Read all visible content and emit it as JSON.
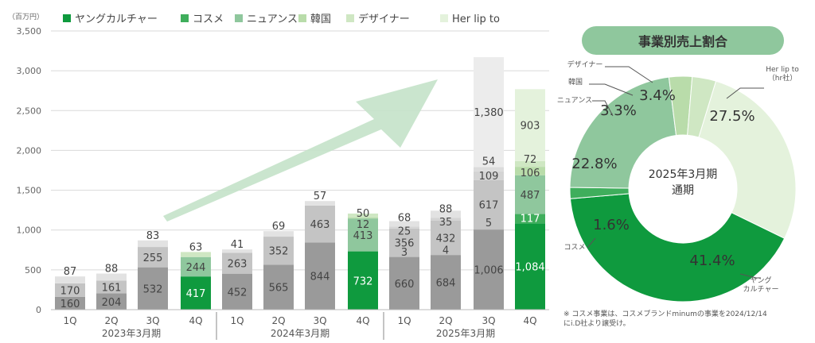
{
  "colors": {
    "young_culture": "#0f9a3e",
    "young_culture_shade": "#9a9a9a",
    "cosme": "#3fae5c",
    "nuance": "#8fc79d",
    "korea": "#b9dcaa",
    "designer": "#cfe7c3",
    "herlipto": "#e4f2dc",
    "grey_light": "#c4c4c4",
    "grey_faint": "#e2e2e2",
    "grid": "#d9d9d9",
    "arrow": "#c4e2c9",
    "pie_title_bg": "#8fc79d"
  },
  "chart_data": [
    {
      "type": "bar",
      "stacked": true,
      "ylabel": "（百万円）",
      "ylim": [
        0,
        3500
      ],
      "yticks": [
        0,
        500,
        1000,
        1500,
        2000,
        2500,
        3000,
        3500
      ],
      "ytick_labels": [
        "0",
        "500",
        "1,000",
        "1,500",
        "2,000",
        "2,500",
        "3,000",
        "3,500"
      ],
      "grid": true,
      "legend_position": "top",
      "legend": [
        {
          "label": "ヤングカルチャー",
          "color": "#0f9a3e"
        },
        {
          "label": "コスメ",
          "color": "#3fae5c"
        },
        {
          "label": "ニュアンス",
          "color": "#8fc79d"
        },
        {
          "label": "韓国",
          "color": "#b9dcaa"
        },
        {
          "label": "デザイナー",
          "color": "#cfe7c3"
        },
        {
          "label": "Her lip to",
          "color": "#e4f2dc"
        }
      ],
      "quarters": [
        "1Q",
        "2Q",
        "3Q",
        "4Q",
        "1Q",
        "2Q",
        "3Q",
        "4Q",
        "1Q",
        "2Q",
        "3Q",
        "4Q"
      ],
      "fiscal_years": [
        {
          "label": "2023年3月期",
          "start": 0,
          "end": 3
        },
        {
          "label": "2024年3月期",
          "start": 4,
          "end": 7
        },
        {
          "label": "2025年3月期",
          "start": 8,
          "end": 11
        }
      ],
      "bars": [
        {
          "segments": [
            {
              "value": 160,
              "label": "160",
              "color": "#9a9a9a"
            },
            {
              "value": 170,
              "label": "170",
              "color": "#c4c4c4"
            },
            {
              "value": 87,
              "label": "87",
              "color": "#e2e2e2"
            }
          ]
        },
        {
          "segments": [
            {
              "value": 204,
              "label": "204",
              "color": "#9a9a9a"
            },
            {
              "value": 161,
              "label": "161",
              "color": "#c4c4c4"
            },
            {
              "value": 88,
              "label": "88",
              "color": "#e2e2e2"
            }
          ]
        },
        {
          "segments": [
            {
              "value": 532,
              "label": "532",
              "color": "#9a9a9a"
            },
            {
              "value": 255,
              "label": "255",
              "color": "#c4c4c4"
            },
            {
              "value": 83,
              "label": "83",
              "color": "#e2e2e2"
            }
          ]
        },
        {
          "segments": [
            {
              "value": 417,
              "label": "417",
              "color": "#0f9a3e"
            },
            {
              "value": 244,
              "label": "244",
              "color": "#8fc79d"
            },
            {
              "value": 63,
              "label": "63",
              "color": "#cfe7c3"
            }
          ]
        },
        {
          "segments": [
            {
              "value": 452,
              "label": "452",
              "color": "#9a9a9a"
            },
            {
              "value": 263,
              "label": "263",
              "color": "#c4c4c4"
            },
            {
              "value": 41,
              "label": "41",
              "color": "#e2e2e2"
            }
          ]
        },
        {
          "segments": [
            {
              "value": 565,
              "label": "565",
              "color": "#9a9a9a"
            },
            {
              "value": 352,
              "label": "352",
              "color": "#c4c4c4"
            },
            {
              "value": 69,
              "label": "69",
              "color": "#e2e2e2"
            }
          ]
        },
        {
          "segments": [
            {
              "value": 844,
              "label": "844",
              "color": "#9a9a9a"
            },
            {
              "value": 463,
              "label": "463",
              "color": "#c4c4c4"
            },
            {
              "value": 57,
              "label": "57",
              "color": "#e2e2e2"
            }
          ]
        },
        {
          "segments": [
            {
              "value": 732,
              "label": "732",
              "color": "#0f9a3e"
            },
            {
              "value": 413,
              "label": "413",
              "color": "#8fc79d"
            },
            {
              "value": 12,
              "label": "12",
              "color": "#b9dcaa"
            },
            {
              "value": 50,
              "label": "50",
              "color": "#cfe7c3"
            }
          ]
        },
        {
          "segments": [
            {
              "value": 660,
              "label": "660",
              "color": "#9a9a9a"
            },
            {
              "value": 3,
              "label": "3",
              "color": "#b0b0b0"
            },
            {
              "value": 356,
              "label": "356",
              "color": "#c4c4c4"
            },
            {
              "value": 25,
              "label": "25",
              "color": "#d4d4d4"
            },
            {
              "value": 68,
              "label": "68",
              "color": "#e2e2e2"
            }
          ]
        },
        {
          "segments": [
            {
              "value": 684,
              "label": "684",
              "color": "#9a9a9a"
            },
            {
              "value": 4,
              "label": "4",
              "color": "#b0b0b0"
            },
            {
              "value": 432,
              "label": "432",
              "color": "#c4c4c4"
            },
            {
              "value": 35,
              "label": "35",
              "color": "#d4d4d4"
            },
            {
              "value": 88,
              "label": "88",
              "color": "#e2e2e2"
            }
          ]
        },
        {
          "segments": [
            {
              "value": 1006,
              "label": "1,006",
              "color": "#9a9a9a"
            },
            {
              "value": 5,
              "label": "5",
              "color": "#b0b0b0"
            },
            {
              "value": 617,
              "label": "617",
              "color": "#c4c4c4"
            },
            {
              "value": 109,
              "label": "109",
              "color": "#d4d4d4"
            },
            {
              "value": 54,
              "label": "54",
              "color": "#dcdcdc"
            },
            {
              "value": 1380,
              "label": "1,380",
              "color": "#ececec"
            }
          ]
        },
        {
          "segments": [
            {
              "value": 1084,
              "label": "1,084",
              "color": "#0f9a3e"
            },
            {
              "value": 117,
              "label": "117",
              "color": "#3fae5c"
            },
            {
              "value": 487,
              "label": "487",
              "color": "#8fc79d"
            },
            {
              "value": 106,
              "label": "106",
              "color": "#b9dcaa"
            },
            {
              "value": 72,
              "label": "72",
              "color": "#cfe7c3"
            },
            {
              "value": 903,
              "label": "903",
              "color": "#e4f2dc"
            }
          ]
        }
      ]
    },
    {
      "type": "pie",
      "donut": true,
      "title": "事業別売上割合",
      "center_label": [
        "2025年3月期",
        "通期"
      ],
      "slices": [
        {
          "name": "Her lip to\n（hr社）",
          "value": 27.5,
          "label": "27.5%",
          "color": "#e4f2dc"
        },
        {
          "name": "ヤング\nカルチャー",
          "value": 41.4,
          "label": "41.4%",
          "color": "#0f9a3e"
        },
        {
          "name": "コスメ",
          "value": 1.6,
          "label": "1.6%",
          "color": "#3fae5c"
        },
        {
          "name": "ニュアンス",
          "value": 22.8,
          "label": "22.8%",
          "color": "#8fc79d"
        },
        {
          "name": "韓国",
          "value": 3.3,
          "label": "3.3%",
          "color": "#b9dcaa"
        },
        {
          "name": "デザイナー",
          "value": 3.4,
          "label": "3.4%",
          "color": "#cfe7c3"
        }
      ]
    }
  ],
  "footnote": [
    "※ コスメ事業は、コスメブランドminumの事業を2024/12/14",
    "にi.D社より譲受け。"
  ]
}
